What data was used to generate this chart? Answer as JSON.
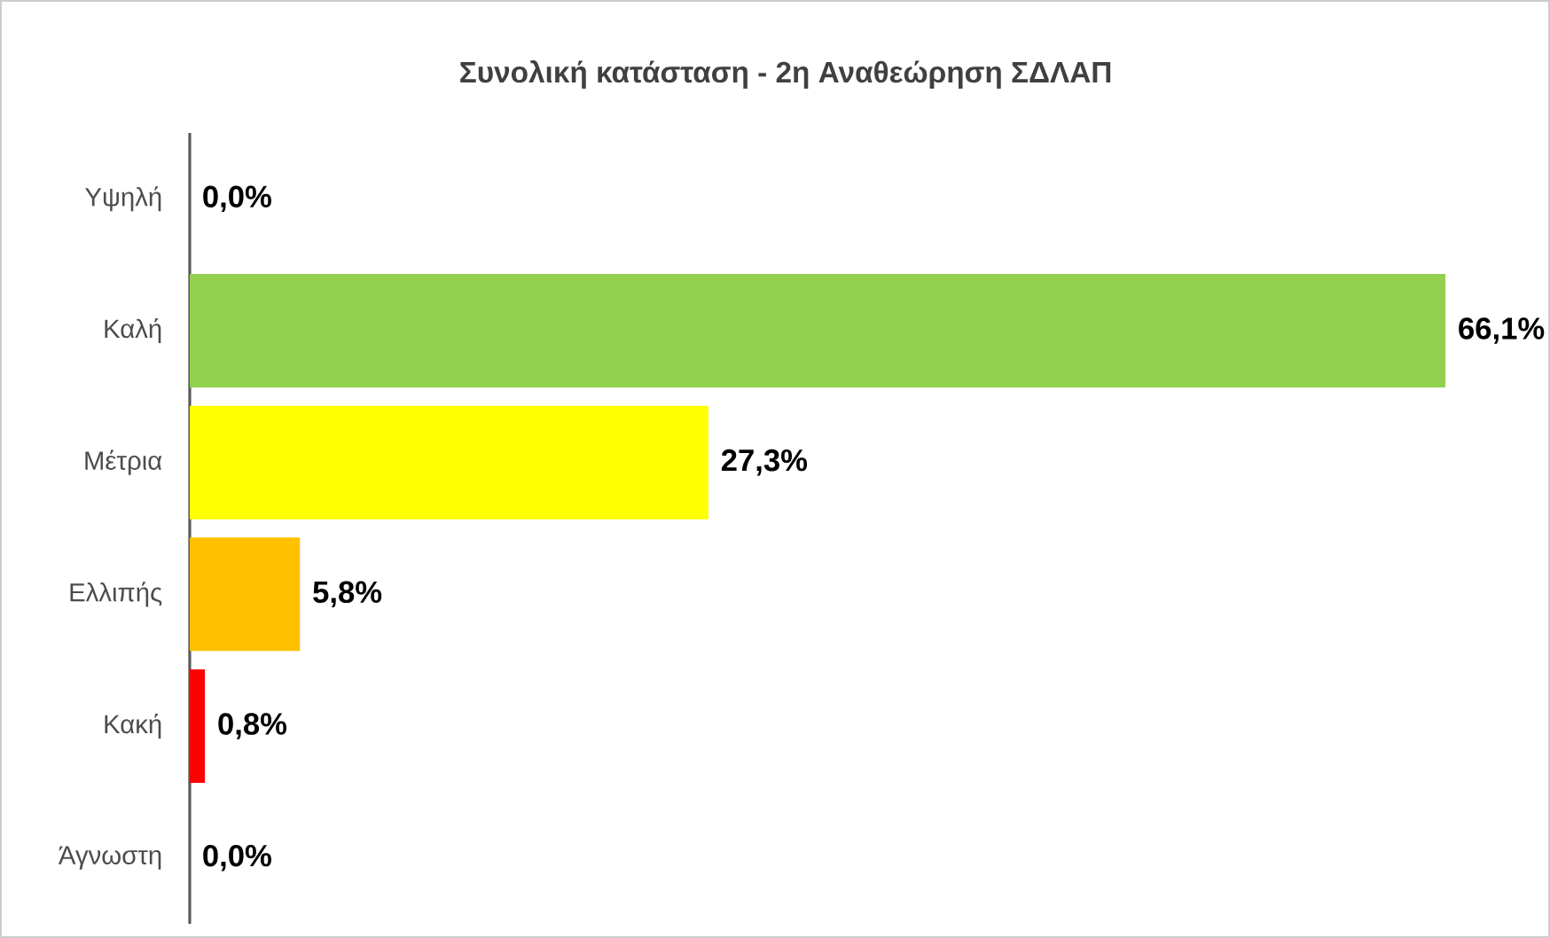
{
  "chart_data": {
    "type": "bar",
    "orientation": "horizontal",
    "title": "Συνολική κατάσταση - 2η Αναθεώρηση ΣΔΛΑΠ",
    "categories": [
      "Υψηλή",
      "Καλή",
      "Μέτρια",
      "Ελλιπής",
      "Κακή",
      "Άγνωστη"
    ],
    "values": [
      0.0,
      66.1,
      27.3,
      5.8,
      0.8,
      0.0
    ],
    "value_labels": [
      "0,0%",
      "66,1%",
      "27,3%",
      "5,8%",
      "0,8%",
      "0,0%"
    ],
    "colors": [
      "#0070c0",
      "#92d050",
      "#ffff00",
      "#ffc000",
      "#ff0000",
      "#a6a6a6"
    ],
    "tick_labels": "y"
  }
}
